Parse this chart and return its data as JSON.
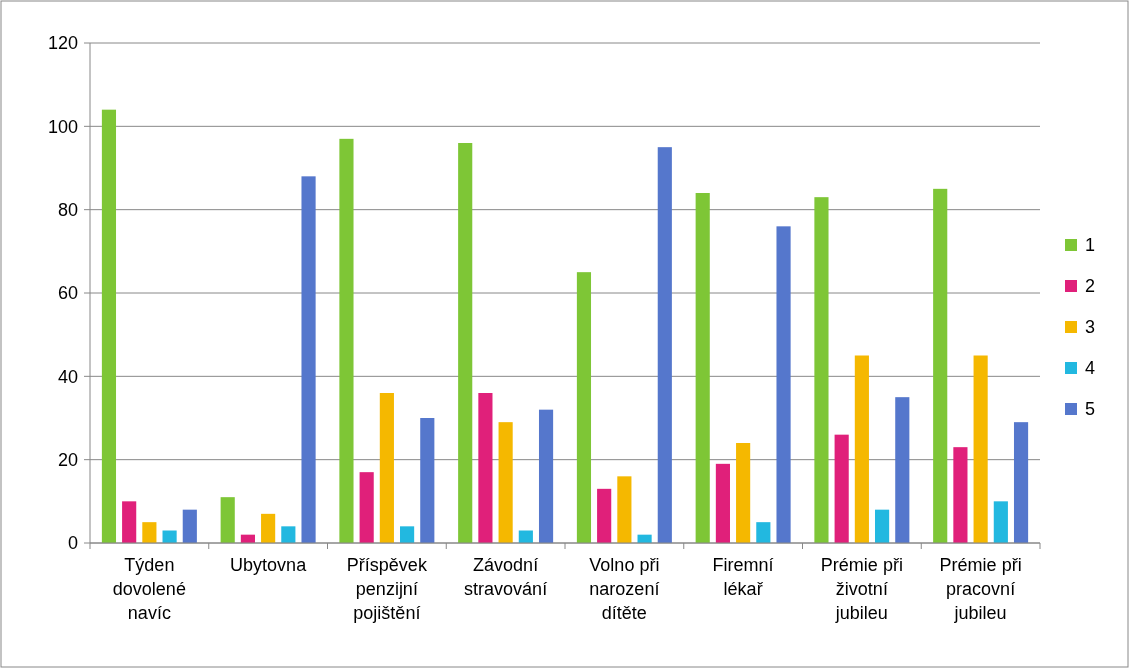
{
  "chart_data": {
    "type": "bar",
    "categories": [
      "Týden dovolené navíc",
      "Ubytovna",
      "Příspěvek penzijní pojištění",
      "Závodní stravování",
      "Volno při narození dítěte",
      "Firemní lékař",
      "Prémie při životní jubileu",
      "Prémie při pracovní jubileu"
    ],
    "series": [
      {
        "name": "1",
        "color": "#7ec636",
        "values": [
          104,
          11,
          97,
          96,
          65,
          84,
          83,
          85
        ]
      },
      {
        "name": "2",
        "color": "#e0207a",
        "values": [
          10,
          2,
          17,
          36,
          13,
          19,
          26,
          23
        ]
      },
      {
        "name": "3",
        "color": "#f5b800",
        "values": [
          5,
          7,
          36,
          29,
          16,
          24,
          45,
          45
        ]
      },
      {
        "name": "4",
        "color": "#22b8e0",
        "values": [
          3,
          4,
          4,
          3,
          2,
          5,
          8,
          10
        ]
      },
      {
        "name": "5",
        "color": "#5577cc",
        "values": [
          8,
          88,
          30,
          32,
          95,
          76,
          35,
          29
        ]
      }
    ],
    "ylim": [
      0,
      120
    ],
    "yticks": [
      0,
      20,
      40,
      60,
      80,
      100,
      120
    ],
    "grid": "y",
    "legend": "right"
  }
}
